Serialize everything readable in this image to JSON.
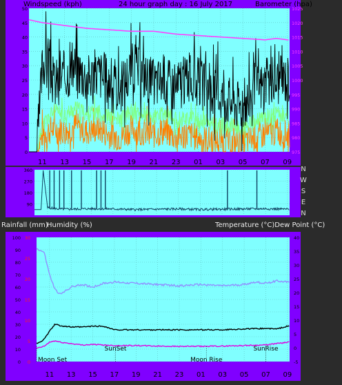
{
  "chart_data": [
    {
      "type": "line",
      "panel": "wind-pressure",
      "title": "24 hour graph day : 16 July 2017",
      "left_axis_label": "Windspeed (kph)",
      "right_axis_label": "Barometer (hpa)",
      "x_ticks": [
        "11",
        "13",
        "15",
        "17",
        "19",
        "21",
        "23",
        "01",
        "03",
        "05",
        "07",
        "09"
      ],
      "left_ticks": [
        0,
        5,
        10,
        15,
        20,
        25,
        30,
        35,
        40,
        45,
        50
      ],
      "right_ticks": [
        975,
        980,
        985,
        990,
        995,
        1000,
        1005,
        1010,
        1015,
        1020,
        1025
      ],
      "ylim_left": [
        0,
        50
      ],
      "ylim_right": [
        975,
        1025
      ],
      "series": [
        {
          "name": "wind_gust",
          "color": "#000000",
          "axis": "left",
          "hours": [
            9.8,
            10.5,
            11,
            11.5,
            12,
            13,
            14,
            15,
            16,
            17,
            18,
            19,
            20,
            21,
            22,
            23,
            24,
            25,
            26,
            27,
            28,
            29,
            30,
            31,
            32,
            33
          ],
          "values": [
            0,
            0,
            30,
            35,
            24,
            27,
            30,
            26,
            28,
            25,
            22,
            30,
            28,
            24,
            26,
            22,
            26,
            24,
            22,
            20,
            18,
            16,
            22,
            24,
            25,
            26
          ]
        },
        {
          "name": "wind_avg",
          "color": "#80ff80",
          "axis": "left",
          "hours": [
            9.8,
            10.5,
            11,
            12,
            13,
            14,
            15,
            16,
            17,
            18,
            19,
            20,
            21,
            22,
            23,
            24,
            25,
            26,
            27,
            28,
            29,
            30,
            31,
            32,
            33
          ],
          "values": [
            0,
            0,
            9,
            14,
            13,
            15,
            13,
            14,
            12,
            11,
            14,
            13,
            12,
            13,
            11,
            12,
            11,
            10,
            9,
            9,
            8,
            10,
            12,
            13,
            12
          ]
        },
        {
          "name": "wind_speed",
          "color": "#ff8000",
          "axis": "left",
          "hours": [
            9.8,
            10.5,
            11,
            12,
            13,
            14,
            15,
            16,
            17,
            18,
            19,
            20,
            21,
            22,
            23,
            24,
            25,
            26,
            27,
            28,
            29,
            30,
            31,
            32,
            33
          ],
          "values": [
            0,
            0,
            6,
            8,
            7,
            9,
            7,
            8,
            6,
            5,
            8,
            7,
            6,
            7,
            5,
            6,
            5,
            4,
            4,
            3,
            3,
            5,
            6,
            7,
            6
          ]
        },
        {
          "name": "barometer",
          "color": "#ff40ff",
          "axis": "right",
          "hours": [
            9.8,
            11,
            12,
            13,
            15,
            17,
            19,
            21,
            23,
            25,
            27,
            29,
            31,
            32,
            33
          ],
          "values": [
            1021,
            1020,
            1019.5,
            1019,
            1018,
            1017.5,
            1017,
            1017,
            1016,
            1015.5,
            1015,
            1014.5,
            1014,
            1014.5,
            1014
          ]
        }
      ]
    },
    {
      "type": "line",
      "panel": "wind-direction",
      "left_ticks": [
        90,
        180,
        270,
        360
      ],
      "right_labels": [
        "N",
        "W",
        "S",
        "E",
        "N"
      ],
      "ylim": [
        0,
        360
      ],
      "series": [
        {
          "name": "wind_direction",
          "color": "#104060",
          "hours": [
            9.8,
            10.4,
            10.6,
            11,
            12,
            13,
            15,
            17,
            19,
            21,
            23,
            25,
            27,
            29,
            31,
            33
          ],
          "values": [
            45,
            45,
            355,
            60,
            50,
            48,
            52,
            50,
            45,
            48,
            50,
            46,
            48,
            50,
            52,
            48
          ]
        }
      ],
      "spikes_hours": [
        11.2,
        11.6,
        12.1,
        12.5,
        13.2,
        14.1,
        15.5,
        15.9,
        16.3,
        27.5,
        30.2
      ]
    },
    {
      "type": "line",
      "panel": "rain-humidity-temperature",
      "left_axis_label_rain": "Rainfall (mm)",
      "left_axis_label_humidity": "Humidity (%)",
      "right_axis_label": "Temperature (°C)Dew Point (°C)",
      "humidity_ticks": [
        0,
        10,
        20,
        30,
        40,
        50,
        60,
        70,
        80,
        90,
        100
      ],
      "rain_ticks": [
        0,
        5,
        10,
        15,
        20,
        25,
        30
      ],
      "temp_ticks": [
        -5,
        0,
        5,
        10,
        15,
        20,
        25,
        30,
        35,
        40
      ],
      "ylim_humidity": [
        0,
        100
      ],
      "ylim_temp": [
        -5,
        40
      ],
      "annotations": [
        {
          "text": "Moon Set",
          "hour": 9.8
        },
        {
          "text": "SunSet",
          "hour": 17.1
        },
        {
          "text": "Moon Rise",
          "hour": 25.5
        },
        {
          "text": "SunRise",
          "hour": 31.0
        }
      ],
      "series": [
        {
          "name": "humidity",
          "color": "#9090ff",
          "axis": "left",
          "hours": [
            9.8,
            10.5,
            11,
            11.5,
            12,
            13,
            14,
            15,
            16,
            17,
            19,
            21,
            23,
            25,
            27,
            29,
            30,
            31,
            32,
            33
          ],
          "values": [
            91,
            88,
            70,
            58,
            54,
            60,
            62,
            60,
            63,
            64,
            63,
            62,
            61,
            62,
            61,
            62,
            64,
            63,
            65,
            64
          ]
        },
        {
          "name": "temperature",
          "color": "#000000",
          "axis": "right",
          "hours": [
            9.8,
            10.5,
            11,
            11.5,
            12,
            13,
            14,
            15,
            16,
            17,
            19,
            21,
            23,
            25,
            27,
            29,
            31,
            32,
            33
          ],
          "values": [
            1.5,
            3,
            6,
            8.5,
            8,
            7.5,
            7.5,
            7.8,
            7.8,
            6.5,
            6.5,
            6.5,
            6.5,
            6.5,
            6.5,
            6.8,
            7,
            6.8,
            7.8
          ]
        },
        {
          "name": "dew_point",
          "color": "#e000e0",
          "axis": "right",
          "hours": [
            9.8,
            10.5,
            11,
            11.5,
            12,
            13,
            14,
            15,
            16,
            17,
            19,
            21,
            23,
            25,
            27,
            29,
            31,
            32,
            33
          ],
          "values": [
            -0.2,
            0.5,
            2,
            2.5,
            2,
            1.5,
            1,
            1.2,
            1,
            0.8,
            0.8,
            0.6,
            0.5,
            0.5,
            0.6,
            0.8,
            1,
            1.5,
            2
          ]
        }
      ]
    }
  ]
}
